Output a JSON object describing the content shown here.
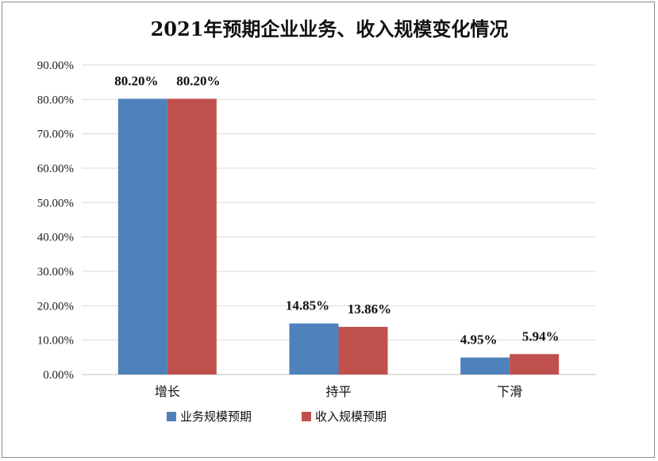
{
  "chart_data": {
    "type": "bar",
    "title": "2021年预期企业业务、收入规模变化情况",
    "categories": [
      "增长",
      "持平",
      "下滑"
    ],
    "series": [
      {
        "name": "业务规模预期",
        "values": [
          80.2,
          14.85,
          4.95
        ],
        "labels": [
          "80.20%",
          "14.85%",
          "4.95%"
        ],
        "color": "#4f81bd"
      },
      {
        "name": "收入规模预期",
        "values": [
          80.2,
          13.86,
          5.94
        ],
        "labels": [
          "80.20%",
          "13.86%",
          "5.94%"
        ],
        "color": "#c0504d"
      }
    ],
    "y_ticks": [
      "0.00%",
      "10.00%",
      "20.00%",
      "30.00%",
      "40.00%",
      "50.00%",
      "60.00%",
      "70.00%",
      "80.00%",
      "90.00%"
    ],
    "ylim": [
      0,
      90
    ],
    "grid": true,
    "legend_position": "bottom",
    "xlabel": "",
    "ylabel": ""
  }
}
